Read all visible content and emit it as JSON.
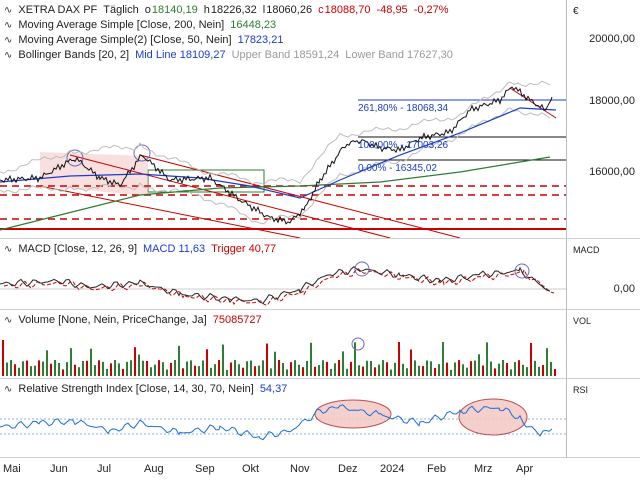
{
  "colors": {
    "price_line": "#111111",
    "ma200": "#2e7d32",
    "ma50": "#1a3dcc",
    "bollinger": "#bdbdbd",
    "fib_line": "#1a3dcc",
    "support_line": "#cc0000",
    "channel": "#cc0000",
    "highlight_fill": "#f4c7c3",
    "volume_bar": "#2e7d32",
    "volume_highlight": "#cc0000",
    "macd_line": "#222222",
    "trigger_line": "#cc0000",
    "rsi_line": "#1a6fd9"
  },
  "main": {
    "instrument": "XETRA DAX PF",
    "period": "Täglich",
    "open_label": "o",
    "open": "18140,19",
    "high_label": "h",
    "high": "18226,32",
    "low_label": "l",
    "low": "18060,26",
    "close_label": "c",
    "close": "18088,70",
    "change": "-48,95",
    "change_pct": "-0,27%",
    "ma200_label": "Moving Average Simple [Close, 200, Nein]",
    "ma200_value": "16448,23",
    "ma50_label": "Moving Average Simple(2) [Close, 50, Nein]",
    "ma50_value": "17823,21",
    "bb_label": "Bollinger Bands [20, 2]",
    "bb_mid": "Mid Line 18109,27",
    "bb_upper": "Upper Band 18591,24",
    "bb_lower": "Lower Band 17627,30",
    "fib_261": "261,80% - 18068,34",
    "fib_100": "100,00% - 17003,26",
    "fib_0": "0,00% - 16345,02",
    "currency": "€",
    "y_ticks": [
      "20000,00",
      "18000,00",
      "16000,00"
    ]
  },
  "macd": {
    "label": "MACD [Close, 12, 26, 9]",
    "macd_value": "MACD 11,63",
    "trigger_value": "Trigger 40,77",
    "axis_title": "MACD",
    "zero_tick": "0,00"
  },
  "volume": {
    "label": "Volume [None, Nein, PriceChange, Ja]",
    "value": "75085727",
    "axis_title": "VOL"
  },
  "rsi": {
    "label": "Relative Strength Index [Close, 14, 30, 70, Nein]",
    "value": "54,37",
    "axis_title": "RSI"
  },
  "x_axis": [
    "Mai",
    "Jun",
    "Jul",
    "Aug",
    "Sep",
    "Okt",
    "Nov",
    "Dez",
    "2024",
    "Feb",
    "Mrz",
    "Apr"
  ]
}
